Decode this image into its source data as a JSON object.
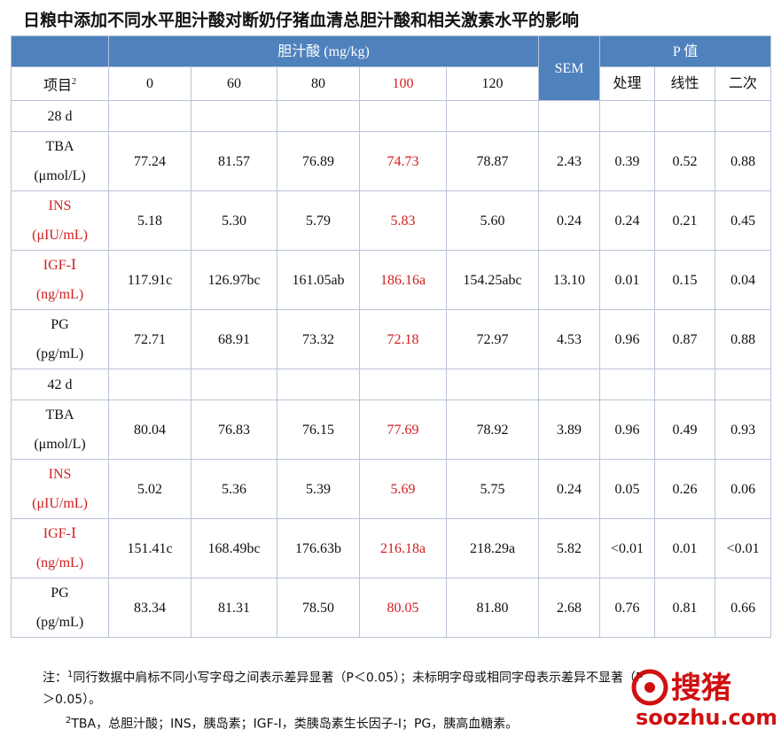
{
  "title": "日粮中添加不同水平胆汁酸对断奶仔猪血清总胆汁酸和相关激素水平的影响",
  "header": {
    "group": "胆汁酸 (mg/kg)",
    "sem": "SEM",
    "pgroup": "P 值",
    "item": "项目",
    "item_note": "2",
    "levels": [
      "0",
      "60",
      "80",
      "100",
      "120"
    ],
    "ptypes": [
      "处理",
      "线性",
      "二次"
    ]
  },
  "rows": [
    {
      "label": [
        "28 d"
      ]
    },
    {
      "label": [
        "TBA",
        "(μmol/L)"
      ],
      "values": [
        "77.24",
        "81.57",
        "76.89",
        "74.73",
        "78.87",
        "2.43",
        "0.39",
        "0.52",
        "0.88"
      ]
    },
    {
      "label": [
        "INS",
        "(μIU/mL)"
      ],
      "values": [
        "5.18",
        "5.30",
        "5.79",
        "5.83",
        "5.60",
        "0.24",
        "0.24",
        "0.21",
        "0.45"
      ]
    },
    {
      "label": [
        "IGF-Ⅰ",
        "(ng/mL)"
      ],
      "values": [
        "117.91c",
        "126.97bc",
        "161.05ab",
        "186.16a",
        "154.25abc",
        "13.10",
        "0.01",
        "0.15",
        "0.04"
      ]
    },
    {
      "label": [
        "PG",
        "(pg/mL)"
      ],
      "values": [
        "72.71",
        "68.91",
        "73.32",
        "72.18",
        "72.97",
        "4.53",
        "0.96",
        "0.87",
        "0.88"
      ]
    },
    {
      "label": [
        "42 d"
      ]
    },
    {
      "label": [
        "TBA",
        "(μmol/L)"
      ],
      "values": [
        "80.04",
        "76.83",
        "76.15",
        "77.69",
        "78.92",
        "3.89",
        "0.96",
        "0.49",
        "0.93"
      ]
    },
    {
      "label": [
        "INS",
        "(μIU/mL)"
      ],
      "values": [
        "5.02",
        "5.36",
        "5.39",
        "5.69",
        "5.75",
        "0.24",
        "0.05",
        "0.26",
        "0.06"
      ]
    },
    {
      "label": [
        "IGF-Ⅰ",
        "(ng/mL)"
      ],
      "values": [
        "151.41c",
        "168.49bc",
        "176.63b",
        "216.18a",
        "218.29a",
        "5.82",
        "<0.01",
        "0.01",
        "<0.01"
      ]
    },
    {
      "label": [
        "PG",
        "(pg/mL)"
      ],
      "values": [
        "83.34",
        "81.31",
        "78.50",
        "80.05",
        "81.80",
        "2.68",
        "0.76",
        "0.81",
        "0.66"
      ]
    }
  ],
  "notes": [
    {
      "mark": "1",
      "text": "注：",
      "body": "同行数据中肩标不同小写字母之间表示差异显著（P＜0.05）；未标明字母或相同字母表示差异不显著（P＞0.05）。"
    },
    {
      "mark": "2",
      "text": "",
      "body": "TBA，总胆汁酸；INS，胰岛素；IGF-Ⅰ，类胰岛素生长因子-Ⅰ；PG，胰高血糖素。"
    }
  ],
  "watermark": {
    "logo": "搜猪",
    "site": "soozhu.com"
  }
}
